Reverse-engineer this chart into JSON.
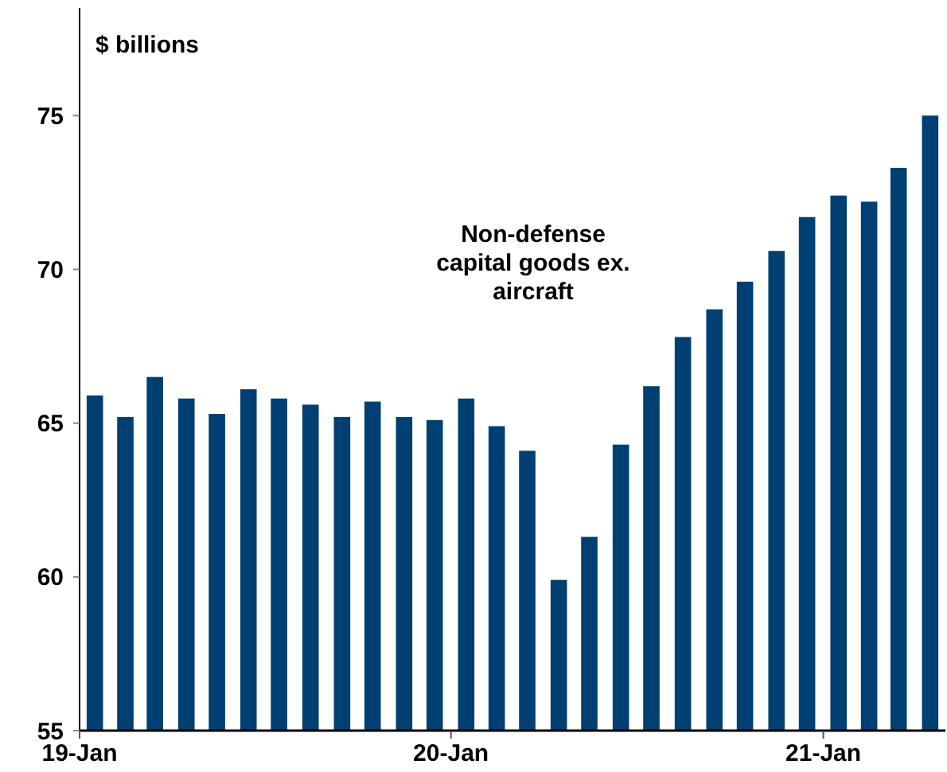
{
  "chart_data": {
    "type": "bar",
    "ylabel": "$ billions",
    "annotations": [
      "Non-defense capital goods ex. aircraft"
    ],
    "x": [
      "2019-01-16",
      "2019-02-15",
      "2019-03-16",
      "2019-04-16",
      "2019-05-16",
      "2019-06-16",
      "2019-07-16",
      "2019-08-16",
      "2019-09-16",
      "2019-10-16",
      "2019-11-16",
      "2019-12-16",
      "2020-01-16",
      "2020-02-15",
      "2020-03-16",
      "2020-04-16",
      "2020-05-16",
      "2020-06-16",
      "2020-07-16",
      "2020-08-16",
      "2020-09-16",
      "2020-10-16",
      "2020-11-16",
      "2020-12-16",
      "2021-01-16",
      "2021-02-15",
      "2021-03-16",
      "2021-04-16"
    ],
    "values": [
      65.9,
      65.2,
      66.5,
      65.8,
      65.3,
      66.1,
      65.8,
      65.6,
      65.2,
      65.7,
      65.2,
      65.1,
      65.8,
      64.9,
      64.1,
      59.9,
      61.3,
      64.3,
      66.2,
      67.8,
      68.7,
      69.6,
      70.6,
      71.7,
      72.4,
      72.2,
      73.3,
      75.0
    ],
    "color": "#003f72",
    "xlim": [
      "2019-01",
      "2021-05"
    ],
    "xticks": [
      {
        "value": "2019-01",
        "label": "19-Jan"
      },
      {
        "value": "2020-01",
        "label": "20-Jan"
      },
      {
        "value": "2021-01",
        "label": "21-Jan"
      }
    ],
    "ylim": [
      55,
      78.5
    ],
    "yticks": [
      55,
      60,
      65,
      70,
      75
    ],
    "grid": false
  }
}
